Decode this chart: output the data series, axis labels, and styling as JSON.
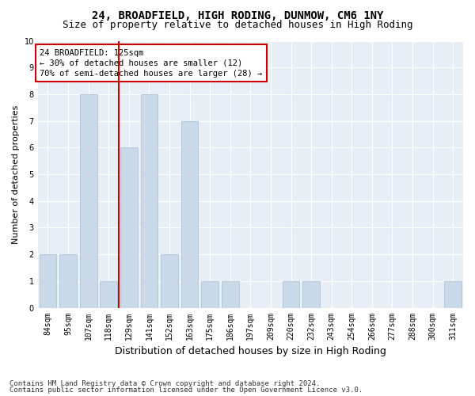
{
  "title1": "24, BROADFIELD, HIGH RODING, DUNMOW, CM6 1NY",
  "title2": "Size of property relative to detached houses in High Roding",
  "xlabel": "Distribution of detached houses by size in High Roding",
  "ylabel": "Number of detached properties",
  "categories": [
    "84sqm",
    "95sqm",
    "107sqm",
    "118sqm",
    "129sqm",
    "141sqm",
    "152sqm",
    "163sqm",
    "175sqm",
    "186sqm",
    "197sqm",
    "209sqm",
    "220sqm",
    "232sqm",
    "243sqm",
    "254sqm",
    "266sqm",
    "277sqm",
    "288sqm",
    "300sqm",
    "311sqm"
  ],
  "values": [
    2,
    2,
    8,
    1,
    6,
    8,
    2,
    7,
    1,
    1,
    0,
    0,
    1,
    1,
    0,
    0,
    0,
    0,
    0,
    0,
    1
  ],
  "bar_color": "#c9d9ea",
  "bar_edgecolor": "#aec6d8",
  "redline_index": 3,
  "ylim": [
    0,
    10
  ],
  "yticks": [
    0,
    1,
    2,
    3,
    4,
    5,
    6,
    7,
    8,
    9,
    10
  ],
  "annotation_box_text": "24 BROADFIELD: 125sqm\n← 30% of detached houses are smaller (12)\n70% of semi-detached houses are larger (28) →",
  "annotation_box_color": "#cc0000",
  "footnote1": "Contains HM Land Registry data © Crown copyright and database right 2024.",
  "footnote2": "Contains public sector information licensed under the Open Government Licence v3.0.",
  "plot_bg_color": "#e8eef5",
  "fig_bg_color": "#ffffff",
  "grid_color": "#ffffff",
  "title_fontsize": 10,
  "subtitle_fontsize": 9,
  "xlabel_fontsize": 9,
  "ylabel_fontsize": 8,
  "tick_fontsize": 7,
  "annotation_fontsize": 7.5,
  "footnote_fontsize": 6.5
}
